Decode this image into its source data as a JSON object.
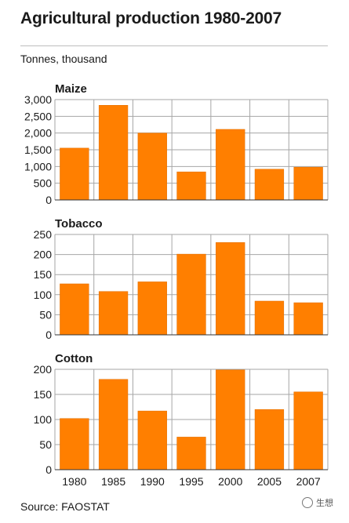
{
  "header": {
    "title": "Agricultural production 1980-2007",
    "unit": "Tonnes, thousand"
  },
  "footer": {
    "source": "Source: FAOSTAT",
    "watermark_text": "生想"
  },
  "colors": {
    "bar": "#ff7f00",
    "bar_edge": "#e06e00",
    "grid": "#a6a6a6",
    "axis": "#333333"
  },
  "chart_data": [
    {
      "type": "bar",
      "title": "Maize",
      "categories": [
        "1980",
        "1985",
        "1990",
        "1995",
        "2000",
        "2005",
        "2007"
      ],
      "values": [
        1550,
        2830,
        2000,
        840,
        2110,
        920,
        980
      ],
      "ylim": [
        0,
        3000
      ],
      "yticks": [
        0,
        500,
        1000,
        1500,
        2000,
        2500,
        3000
      ],
      "ytick_labels": [
        "0",
        "500",
        "1,000",
        "1,500",
        "2,000",
        "2,500",
        "3,000"
      ],
      "grid": true
    },
    {
      "type": "bar",
      "title": "Tobacco",
      "categories": [
        "1980",
        "1985",
        "1990",
        "1995",
        "2000",
        "2005",
        "2007"
      ],
      "values": [
        127,
        108,
        132,
        201,
        230,
        84,
        80
      ],
      "ylim": [
        0,
        250
      ],
      "yticks": [
        0,
        50,
        100,
        150,
        200,
        250
      ],
      "ytick_labels": [
        "0",
        "50",
        "100",
        "150",
        "200",
        "250"
      ],
      "grid": true
    },
    {
      "type": "bar",
      "title": "Cotton",
      "categories": [
        "1980",
        "1985",
        "1990",
        "1995",
        "2000",
        "2005",
        "2007"
      ],
      "values": [
        102,
        180,
        117,
        65,
        199,
        120,
        155
      ],
      "ylim": [
        0,
        200
      ],
      "yticks": [
        0,
        50,
        100,
        150,
        200
      ],
      "ytick_labels": [
        "0",
        "50",
        "100",
        "150",
        "200"
      ],
      "grid": true
    }
  ]
}
